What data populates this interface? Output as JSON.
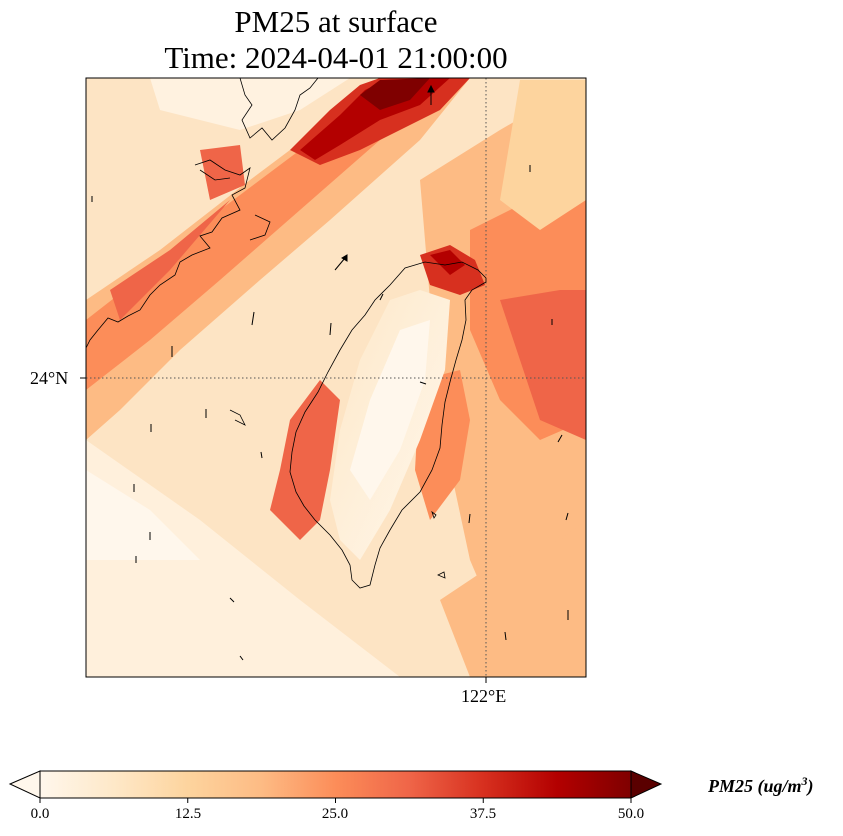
{
  "figure": {
    "title_line1": "PM25 at surface",
    "title_line2": "Time: 2024-04-01 21:00:00"
  },
  "map": {
    "lat_tick_label": "24°N",
    "lon_tick_label": "122°E",
    "gridlines": true,
    "coastline_color": "#000000",
    "features": [
      "taiwan-coastline",
      "china-coastline",
      "wind-vectors"
    ]
  },
  "colorbar": {
    "label_main": "PM25 (ug/m",
    "label_exp": "3",
    "label_close": ")",
    "ticks": [
      "0.0",
      "12.5",
      "25.0",
      "37.5",
      "50.0"
    ],
    "vmin": 0,
    "vmax": 50,
    "extend": "both",
    "colormap": "OrRd",
    "colors": [
      "#fff7ec",
      "#fee8c8",
      "#fdd49e",
      "#fdbb84",
      "#fc8d59",
      "#ef6548",
      "#d7301f",
      "#b30000",
      "#7f0000"
    ]
  }
}
